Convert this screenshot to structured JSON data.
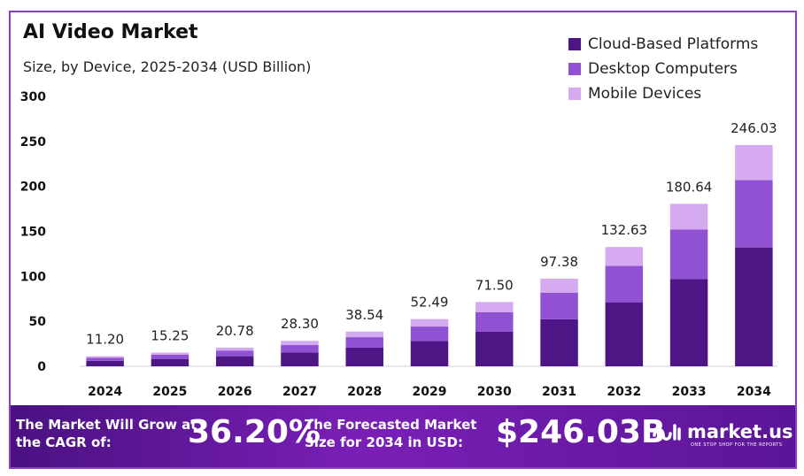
{
  "colors": {
    "cloud": "#4e1585",
    "desktop": "#9051d2",
    "mobile": "#d5aaf0",
    "border": "#8e3ec4",
    "footer_start": "#4a1182",
    "footer_end": "#5b1597"
  },
  "chart_data": {
    "type": "bar",
    "stacked": true,
    "title": "AI Video Market",
    "subtitle": "Size, by Device, 2025-2034 (USD Billion)",
    "categories": [
      "2024",
      "2025",
      "2026",
      "2027",
      "2028",
      "2029",
      "2030",
      "2031",
      "2032",
      "2033",
      "2034"
    ],
    "totals": [
      "11.20",
      "15.25",
      "20.78",
      "28.30",
      "38.54",
      "52.49",
      "71.50",
      "97.38",
      "132.63",
      "180.64",
      "246.03"
    ],
    "series": [
      {
        "name": "Cloud-Based Platforms",
        "values": [
          6.0,
          8.2,
          11.2,
          15.2,
          20.7,
          28.2,
          38.4,
          52.3,
          71.2,
          97.0,
          132.1
        ]
      },
      {
        "name": "Desktop Computers",
        "values": [
          3.4,
          4.6,
          6.3,
          8.6,
          11.7,
          16.0,
          21.8,
          29.6,
          40.4,
          55.0,
          74.9
        ]
      },
      {
        "name": "Mobile Devices",
        "values": [
          1.8,
          2.45,
          3.28,
          4.5,
          6.14,
          8.29,
          11.3,
          15.48,
          21.03,
          28.64,
          39.03
        ]
      }
    ],
    "yticks": [
      "0",
      "50",
      "100",
      "150",
      "200",
      "250",
      "300"
    ],
    "ylim": [
      0,
      300
    ],
    "legend_position": "top-right",
    "grid": false
  },
  "footer": {
    "cagr_label": "The Market Will Grow at the CAGR of:",
    "cagr_value": "36.20%",
    "forecast_label": "The Forecasted Market Size for 2034 in USD:",
    "forecast_value": "$246.03B",
    "brand_name": "market.us",
    "brand_tagline": "ONE STOP SHOP FOR THE REPORTS",
    "brand_icon": "market-us-logo-icon"
  }
}
